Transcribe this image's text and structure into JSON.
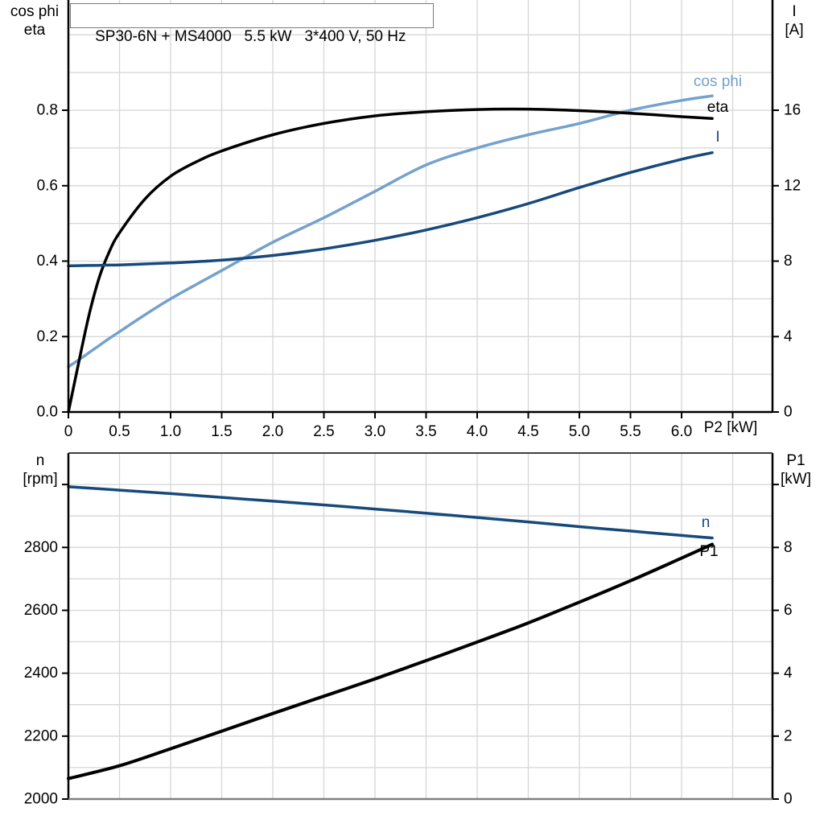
{
  "header": {
    "title": "SP30-6N + MS4000   5.5 kW   3*400 V, 50 Hz"
  },
  "colors": {
    "light_blue": "#74A1CD",
    "dark_blue": "#16497C",
    "black": "#000000",
    "grid": "#d6d6d6",
    "border_gray": "#808080"
  },
  "chart_data": [
    {
      "type": "line",
      "title": "SP30-6N + MS4000   5.5 kW   3*400 V, 50 Hz",
      "x_axis": {
        "label": "P2 [kW]",
        "min": 0,
        "max": 6.89,
        "grid_step": 0.5,
        "tick_step": 0.5,
        "tick_max": 6.5,
        "tick_labels": [
          "0",
          "0.5",
          "1.0",
          "1.5",
          "2.0",
          "2.5",
          "3.0",
          "3.5",
          "4.0",
          "4.5",
          "5.0",
          "5.5",
          "6.0",
          ""
        ]
      },
      "y_left": {
        "label_lines": [
          "cos phi",
          "eta"
        ],
        "min": 0,
        "max": 1.09,
        "grid_step": 0.1,
        "grid_max": 1.0,
        "tick_values": [
          0,
          0.2,
          0.4,
          0.6,
          0.8
        ],
        "tick_labels": [
          "0.0",
          "0.2",
          "0.4",
          "0.6",
          "0.8"
        ]
      },
      "y_right": {
        "label_lines": [
          "I",
          "[A]"
        ],
        "min": 0,
        "max": 21.8,
        "tick_values": [
          0,
          4,
          8,
          12,
          16
        ],
        "tick_labels": [
          "0",
          "4",
          "8",
          "12",
          "16"
        ]
      },
      "x": [
        0,
        0.1,
        0.2,
        0.3,
        0.4,
        0.5,
        0.75,
        1.0,
        1.25,
        1.5,
        2.0,
        2.5,
        3.0,
        3.5,
        4.0,
        4.5,
        5.0,
        5.5,
        6.0,
        6.3
      ],
      "series": [
        {
          "name": "cos phi",
          "axis": "left",
          "color": "#74A1CD",
          "values": [
            0.12,
            0.138,
            0.157,
            0.176,
            0.195,
            0.213,
            0.258,
            0.3,
            0.338,
            0.375,
            0.45,
            0.515,
            0.585,
            0.655,
            0.7,
            0.735,
            0.765,
            0.8,
            0.826,
            0.838
          ]
        },
        {
          "name": "eta",
          "axis": "left",
          "color": "#000000",
          "values": [
            0,
            0.13,
            0.255,
            0.355,
            0.425,
            0.475,
            0.565,
            0.625,
            0.663,
            0.692,
            0.735,
            0.765,
            0.785,
            0.796,
            0.802,
            0.803,
            0.799,
            0.792,
            0.783,
            0.778
          ]
        },
        {
          "name": "I",
          "axis": "right",
          "color": "#16497C",
          "values": [
            7.75,
            7.76,
            7.77,
            7.78,
            7.79,
            7.8,
            7.85,
            7.9,
            7.97,
            8.05,
            8.3,
            8.65,
            9.1,
            9.65,
            10.3,
            11.05,
            11.9,
            12.7,
            13.4,
            13.75
          ]
        }
      ]
    },
    {
      "type": "line",
      "title": "",
      "x_axis": {
        "label": "",
        "min": 0,
        "max": 6.89,
        "grid_step": 0.5,
        "tick_step": 0.5,
        "tick_max": 6.5,
        "tick_labels": []
      },
      "y_left": {
        "label_lines": [
          "n",
          "[rpm]"
        ],
        "min": 2000,
        "max": 3100,
        "grid_step": 100,
        "grid_max": 3000,
        "tick_values": [
          2000,
          2200,
          2400,
          2600,
          2800,
          3000
        ],
        "tick_labels": [
          "2000",
          "2200",
          "2400",
          "2600",
          "2800",
          ""
        ]
      },
      "y_right": {
        "label_lines": [
          "P1",
          "[kW]"
        ],
        "min": 0,
        "max": 11,
        "tick_values": [
          0,
          2,
          4,
          6,
          8,
          10
        ],
        "tick_labels": [
          "0",
          "2",
          "4",
          "6",
          "8",
          ""
        ]
      },
      "x": [
        0,
        0.5,
        1.0,
        1.5,
        2.0,
        2.5,
        3.0,
        3.5,
        4.0,
        4.5,
        5.0,
        5.5,
        6.0,
        6.3
      ],
      "series": [
        {
          "name": "n",
          "axis": "left",
          "color": "#16497C",
          "values": [
            2993,
            2982,
            2971,
            2959,
            2947,
            2935,
            2922,
            2909,
            2895,
            2881,
            2866,
            2852,
            2838,
            2830
          ]
        },
        {
          "name": "P1",
          "axis": "right",
          "color": "#000000",
          "values": [
            0.65,
            1.06,
            1.6,
            2.16,
            2.72,
            3.27,
            3.82,
            4.4,
            4.99,
            5.6,
            6.26,
            6.94,
            7.66,
            8.1
          ]
        }
      ]
    }
  ]
}
